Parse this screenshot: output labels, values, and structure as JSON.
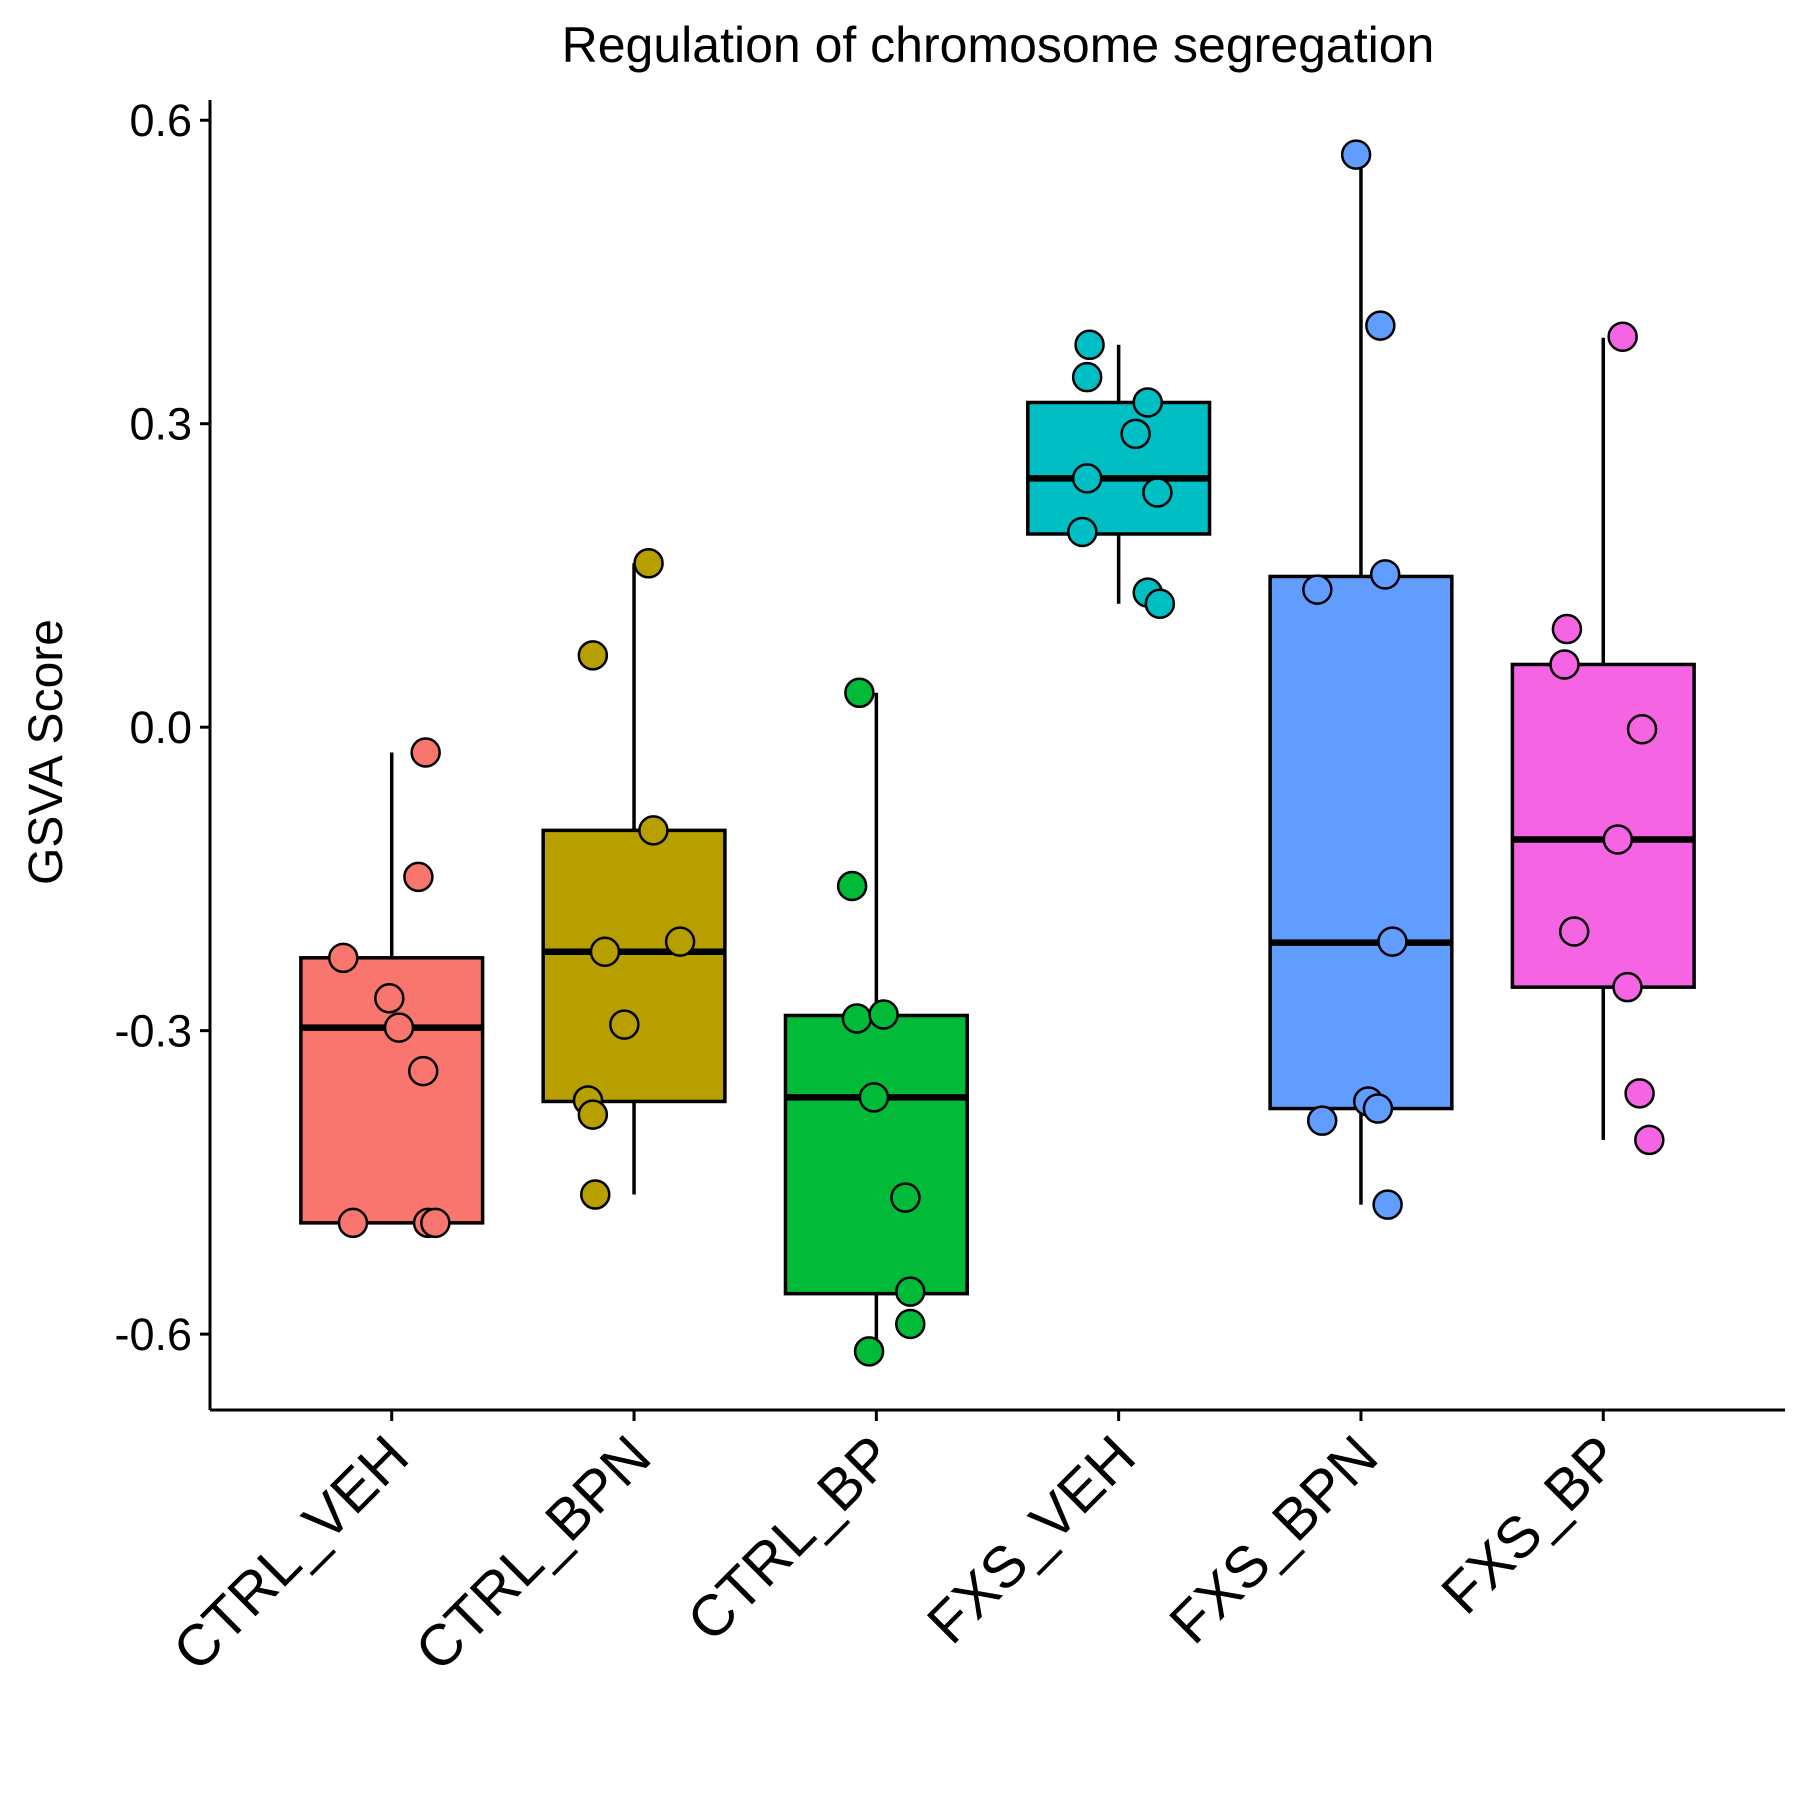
{
  "chart_data": {
    "type": "box",
    "title": "Regulation of chromosome segregation",
    "xlabel": "",
    "ylabel": "GSVA Score",
    "ylim": [
      -0.675,
      0.62
    ],
    "yticks": [
      -0.6,
      -0.3,
      0.0,
      0.3,
      0.6
    ],
    "ytick_labels": [
      "-0.6",
      "-0.3",
      "0.0",
      "0.3",
      "0.6"
    ],
    "categories": [
      "CTRL_VEH",
      "CTRL_BPN",
      "CTRL_BP",
      "FXS_VEH",
      "FXS_BPN",
      "FXS_BP"
    ],
    "grid": false,
    "legend": "none",
    "series": [
      {
        "category": "CTRL_VEH",
        "color": "#F8766D",
        "box": {
          "lower_whisker": -0.49,
          "q1": -0.49,
          "median": -0.297,
          "q3": -0.228,
          "upper_whisker": -0.025
        },
        "points": [
          {
            "x_jitter": 0.14,
            "y": -0.025
          },
          {
            "x_jitter": 0.11,
            "y": -0.148
          },
          {
            "x_jitter": -0.2,
            "y": -0.228
          },
          {
            "x_jitter": -0.01,
            "y": -0.268
          },
          {
            "x_jitter": 0.03,
            "y": -0.297
          },
          {
            "x_jitter": 0.13,
            "y": -0.34
          },
          {
            "x_jitter": -0.16,
            "y": -0.49
          },
          {
            "x_jitter": 0.15,
            "y": -0.49
          },
          {
            "x_jitter": 0.18,
            "y": -0.49
          }
        ]
      },
      {
        "category": "CTRL_BPN",
        "color": "#B79F00",
        "box": {
          "lower_whisker": -0.462,
          "q1": -0.37,
          "median": -0.222,
          "q3": -0.102,
          "upper_whisker": 0.162
        },
        "points": [
          {
            "x_jitter": 0.06,
            "y": 0.162
          },
          {
            "x_jitter": -0.17,
            "y": 0.071
          },
          {
            "x_jitter": 0.08,
            "y": -0.102
          },
          {
            "x_jitter": -0.12,
            "y": -0.222
          },
          {
            "x_jitter": 0.19,
            "y": -0.212
          },
          {
            "x_jitter": -0.04,
            "y": -0.294
          },
          {
            "x_jitter": -0.19,
            "y": -0.369
          },
          {
            "x_jitter": -0.17,
            "y": -0.383
          },
          {
            "x_jitter": -0.16,
            "y": -0.462
          }
        ]
      },
      {
        "category": "CTRL_BP",
        "color": "#00BA38",
        "box": {
          "lower_whisker": -0.618,
          "q1": -0.56,
          "median": -0.366,
          "q3": -0.285,
          "upper_whisker": 0.034
        },
        "points": [
          {
            "x_jitter": -0.07,
            "y": 0.034
          },
          {
            "x_jitter": -0.1,
            "y": -0.157
          },
          {
            "x_jitter": -0.08,
            "y": -0.288
          },
          {
            "x_jitter": 0.03,
            "y": -0.284
          },
          {
            "x_jitter": -0.01,
            "y": -0.366
          },
          {
            "x_jitter": 0.12,
            "y": -0.465
          },
          {
            "x_jitter": 0.14,
            "y": -0.558
          },
          {
            "x_jitter": 0.14,
            "y": -0.59
          },
          {
            "x_jitter": -0.03,
            "y": -0.617
          }
        ]
      },
      {
        "category": "FXS_VEH",
        "color": "#00BFC4",
        "box": {
          "lower_whisker": 0.122,
          "q1": 0.191,
          "median": 0.246,
          "q3": 0.321,
          "upper_whisker": 0.378
        },
        "points": [
          {
            "x_jitter": -0.12,
            "y": 0.378
          },
          {
            "x_jitter": -0.13,
            "y": 0.346
          },
          {
            "x_jitter": 0.12,
            "y": 0.321
          },
          {
            "x_jitter": 0.07,
            "y": 0.29
          },
          {
            "x_jitter": -0.13,
            "y": 0.246
          },
          {
            "x_jitter": 0.16,
            "y": 0.232
          },
          {
            "x_jitter": -0.15,
            "y": 0.193
          },
          {
            "x_jitter": 0.12,
            "y": 0.133
          },
          {
            "x_jitter": 0.17,
            "y": 0.122
          }
        ]
      },
      {
        "category": "FXS_BPN",
        "color": "#619CFF",
        "box": {
          "lower_whisker": -0.472,
          "q1": -0.377,
          "median": -0.213,
          "q3": 0.149,
          "upper_whisker": 0.566
        },
        "points": [
          {
            "x_jitter": -0.02,
            "y": 0.566
          },
          {
            "x_jitter": 0.08,
            "y": 0.397
          },
          {
            "x_jitter": 0.1,
            "y": 0.151
          },
          {
            "x_jitter": -0.18,
            "y": 0.136
          },
          {
            "x_jitter": 0.13,
            "y": -0.212
          },
          {
            "x_jitter": 0.03,
            "y": -0.37
          },
          {
            "x_jitter": 0.07,
            "y": -0.377
          },
          {
            "x_jitter": -0.16,
            "y": -0.389
          },
          {
            "x_jitter": 0.11,
            "y": -0.472
          }
        ]
      },
      {
        "category": "FXS_BP",
        "color": "#F564E3",
        "box": {
          "lower_whisker": -0.408,
          "q1": -0.257,
          "median": -0.111,
          "q3": 0.062,
          "upper_whisker": 0.385
        },
        "points": [
          {
            "x_jitter": 0.08,
            "y": 0.386
          },
          {
            "x_jitter": -0.15,
            "y": 0.097
          },
          {
            "x_jitter": -0.16,
            "y": 0.062
          },
          {
            "x_jitter": 0.16,
            "y": -0.002
          },
          {
            "x_jitter": 0.06,
            "y": -0.111
          },
          {
            "x_jitter": -0.12,
            "y": -0.202
          },
          {
            "x_jitter": 0.1,
            "y": -0.257
          },
          {
            "x_jitter": 0.15,
            "y": -0.362
          },
          {
            "x_jitter": 0.19,
            "y": -0.408
          }
        ]
      }
    ]
  }
}
